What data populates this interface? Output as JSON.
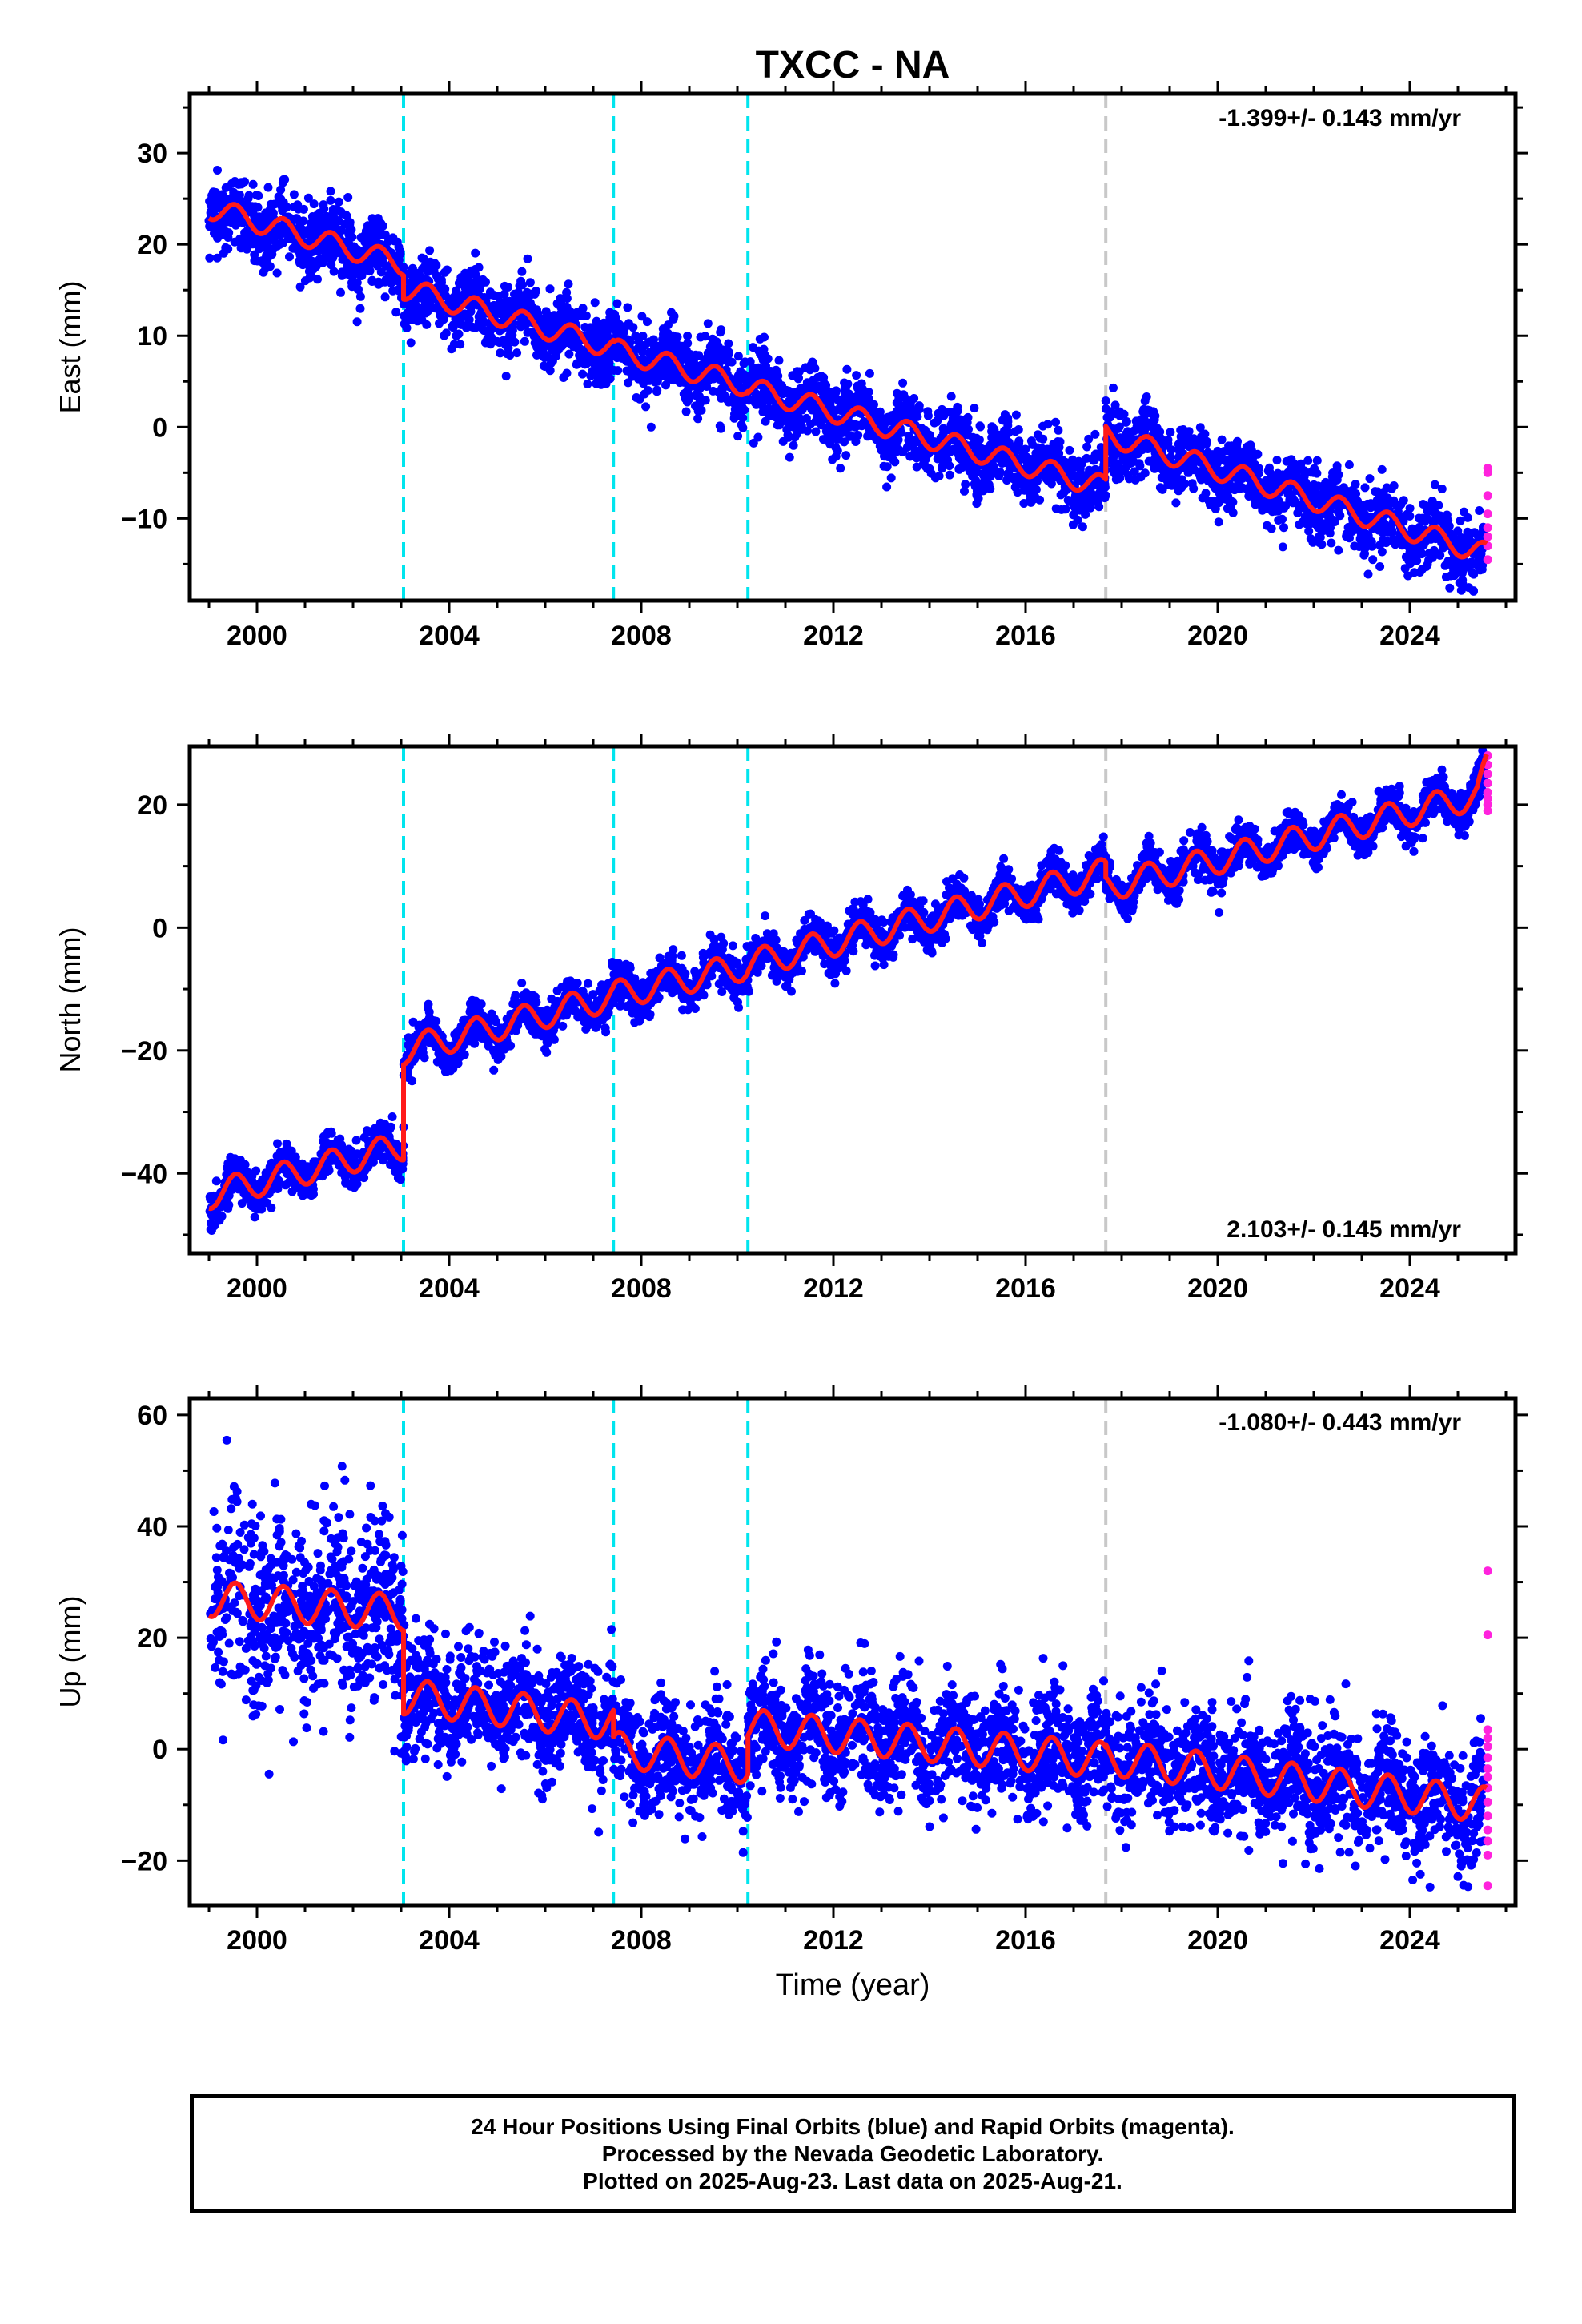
{
  "title": "TXCC - NA",
  "colors": {
    "final_orbits": "#0000ff",
    "rapid_orbits": "#ff22dd",
    "model": "#ff1a1a",
    "equipment_change": "#00e5ee",
    "other_event": "#c8c8c8"
  },
  "caption": {
    "line1": "24 Hour Positions Using Final Orbits (blue) and Rapid Orbits (magenta).",
    "line2": "Processed by the Nevada Geodetic Laboratory.",
    "line3": "Plotted on 2025-Aug-23. Last data on 2025-Aug-21."
  },
  "chart_data": [
    {
      "type": "scatter",
      "component": "East",
      "ylabel": "East (mm)",
      "xlabel": "",
      "xlim": [
        1998.6,
        2026.2
      ],
      "ylim": [
        -19,
        36.5
      ],
      "xticks": [
        2000,
        2004,
        2008,
        2012,
        2016,
        2020,
        2024
      ],
      "yticks": [
        -10,
        0,
        10,
        20,
        30
      ],
      "rate_label": "-1.399+/- 0.143 mm/yr",
      "rate_position": "top-right",
      "event_lines": {
        "cyan": [
          2003.05,
          2007.42,
          2010.22
        ],
        "gray": [
          2017.67
        ]
      },
      "model_knots": [
        [
          1999.0,
          24.0
        ],
        [
          2003.05,
          17.8
        ],
        [
          2003.05,
          15.2
        ],
        [
          2007.42,
          8.7
        ],
        [
          2007.42,
          8.5
        ],
        [
          2010.22,
          4.5
        ],
        [
          2010.22,
          4.3
        ],
        [
          2017.67,
          -6.6
        ],
        [
          2017.67,
          -0.8
        ],
        [
          2025.6,
          -13.9
        ]
      ],
      "seasonal_amplitude": 1.2,
      "scatter_sigma": 1.9,
      "rapid_points_y": [
        -4.5,
        -5.0,
        -7.5,
        -9.5,
        -11.0,
        -12.0,
        -13.0,
        -14.5
      ]
    },
    {
      "type": "scatter",
      "component": "North",
      "ylabel": "North (mm)",
      "xlabel": "",
      "xlim": [
        1998.6,
        2026.2
      ],
      "ylim": [
        -53,
        29.5
      ],
      "xticks": [
        2000,
        2004,
        2008,
        2012,
        2016,
        2020,
        2024
      ],
      "yticks": [
        -40,
        -20,
        0,
        20
      ],
      "rate_label": "2.103+/- 0.145 mm/yr",
      "rate_position": "bottom-right",
      "event_lines": {
        "cyan": [
          2003.05,
          2007.42,
          2010.22
        ],
        "gray": [
          2017.67
        ]
      },
      "model_knots": [
        [
          1999.0,
          -43.5
        ],
        [
          2003.05,
          -35.5
        ],
        [
          2003.05,
          -20.0
        ],
        [
          2007.42,
          -11.2
        ],
        [
          2007.42,
          -11.0
        ],
        [
          2010.22,
          -6.2
        ],
        [
          2010.22,
          -6.0
        ],
        [
          2017.67,
          9.0
        ],
        [
          2017.67,
          6.5
        ],
        [
          2025.4,
          21.5
        ],
        [
          2025.6,
          26.0
        ]
      ],
      "seasonal_amplitude": 2.3,
      "scatter_sigma": 1.6,
      "rapid_points_y": [
        28.0,
        26.5,
        25.0,
        23.5,
        22.0,
        21.0,
        20.0,
        19.0
      ]
    },
    {
      "type": "scatter",
      "component": "Up",
      "ylabel": "Up (mm)",
      "xlabel": "Time (year)",
      "xlim": [
        1998.6,
        2026.2
      ],
      "ylim": [
        -28,
        63
      ],
      "xticks": [
        2000,
        2004,
        2008,
        2012,
        2016,
        2020,
        2024
      ],
      "yticks": [
        -20,
        0,
        20,
        40,
        60
      ],
      "rate_label": "-1.080+/- 0.443 mm/yr",
      "rate_position": "top-right",
      "event_lines": {
        "cyan": [
          2003.05,
          2007.42,
          2010.22
        ],
        "gray": [
          2017.67
        ]
      },
      "model_knots": [
        [
          1999.0,
          27.0
        ],
        [
          2003.05,
          24.5
        ],
        [
          2003.05,
          9.5
        ],
        [
          2007.42,
          4.8
        ],
        [
          2007.42,
          0.0
        ],
        [
          2010.22,
          -3.0
        ],
        [
          2010.22,
          4.0
        ],
        [
          2017.67,
          -2.0
        ],
        [
          2017.67,
          -1.5
        ],
        [
          2025.6,
          -10.0
        ]
      ],
      "seasonal_amplitude": 3.2,
      "scatter_sigma": 5.2,
      "rapid_points_y": [
        32.0,
        20.5,
        3.5,
        2.0,
        0.5,
        -1.5,
        -3.5,
        -5.0,
        -7.0,
        -9.5,
        -12.0,
        -14.5,
        -16.5,
        -19.0,
        -24.5
      ]
    }
  ]
}
